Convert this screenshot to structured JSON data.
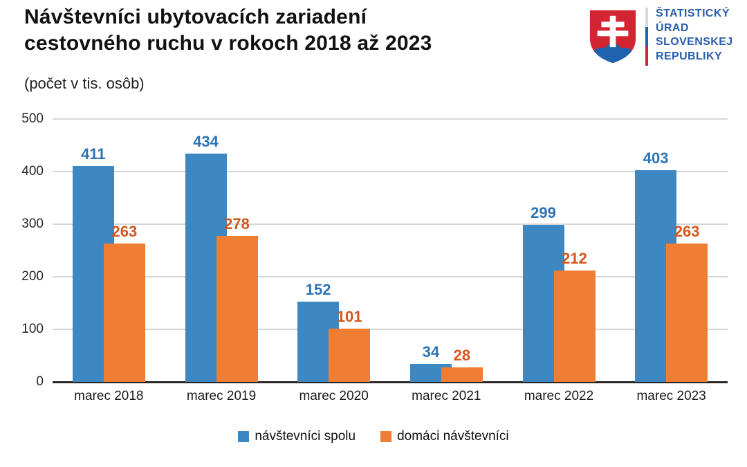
{
  "header": {
    "title_line1": "Návštevníci ubytovacích zariadení",
    "title_line2": "cestovného ruchu v rokoch 2018 až 2023",
    "subtitle": "(počet v tis. osôb)"
  },
  "logo": {
    "org_lines": [
      "ŠTATISTICKÝ",
      "ÚRAD",
      "SLOVENSKEJ",
      "REPUBLIKY"
    ],
    "text_color": "#2a5caa",
    "shield_red": "#d32431",
    "shield_blue": "#1f63ae",
    "tricolor": [
      "#d9d9d9",
      "#1f63ae",
      "#d32431"
    ]
  },
  "chart_data": {
    "type": "bar",
    "title": "Návštevníci ubytovacích zariadení cestovného ruchu v rokoch 2018 až 2023",
    "subtitle": "(počet v tis. osôb)",
    "unit": "tis. osôb",
    "categories": [
      "marec 2018",
      "marec 2019",
      "marec 2020",
      "marec 2021",
      "marec 2022",
      "marec 2023"
    ],
    "series": [
      {
        "name": "návštevníci spolu",
        "values": [
          411,
          434,
          152,
          34,
          299,
          403
        ],
        "color": "#3d87c3",
        "label_color": "#2c74b4"
      },
      {
        "name": "domáci návštevníci",
        "values": [
          263,
          278,
          101,
          28,
          212,
          263
        ],
        "color": "#ef7d33",
        "label_color": "#d2571e"
      }
    ],
    "ylim": [
      0,
      500
    ],
    "yticks": [
      0,
      100,
      200,
      300,
      400,
      500
    ],
    "grid": "horizontal",
    "grid_color": "#d6d6d6",
    "axis_color": "#262626",
    "tick_label_color": "#262626",
    "legend_position": "bottom",
    "data_labels": true
  }
}
